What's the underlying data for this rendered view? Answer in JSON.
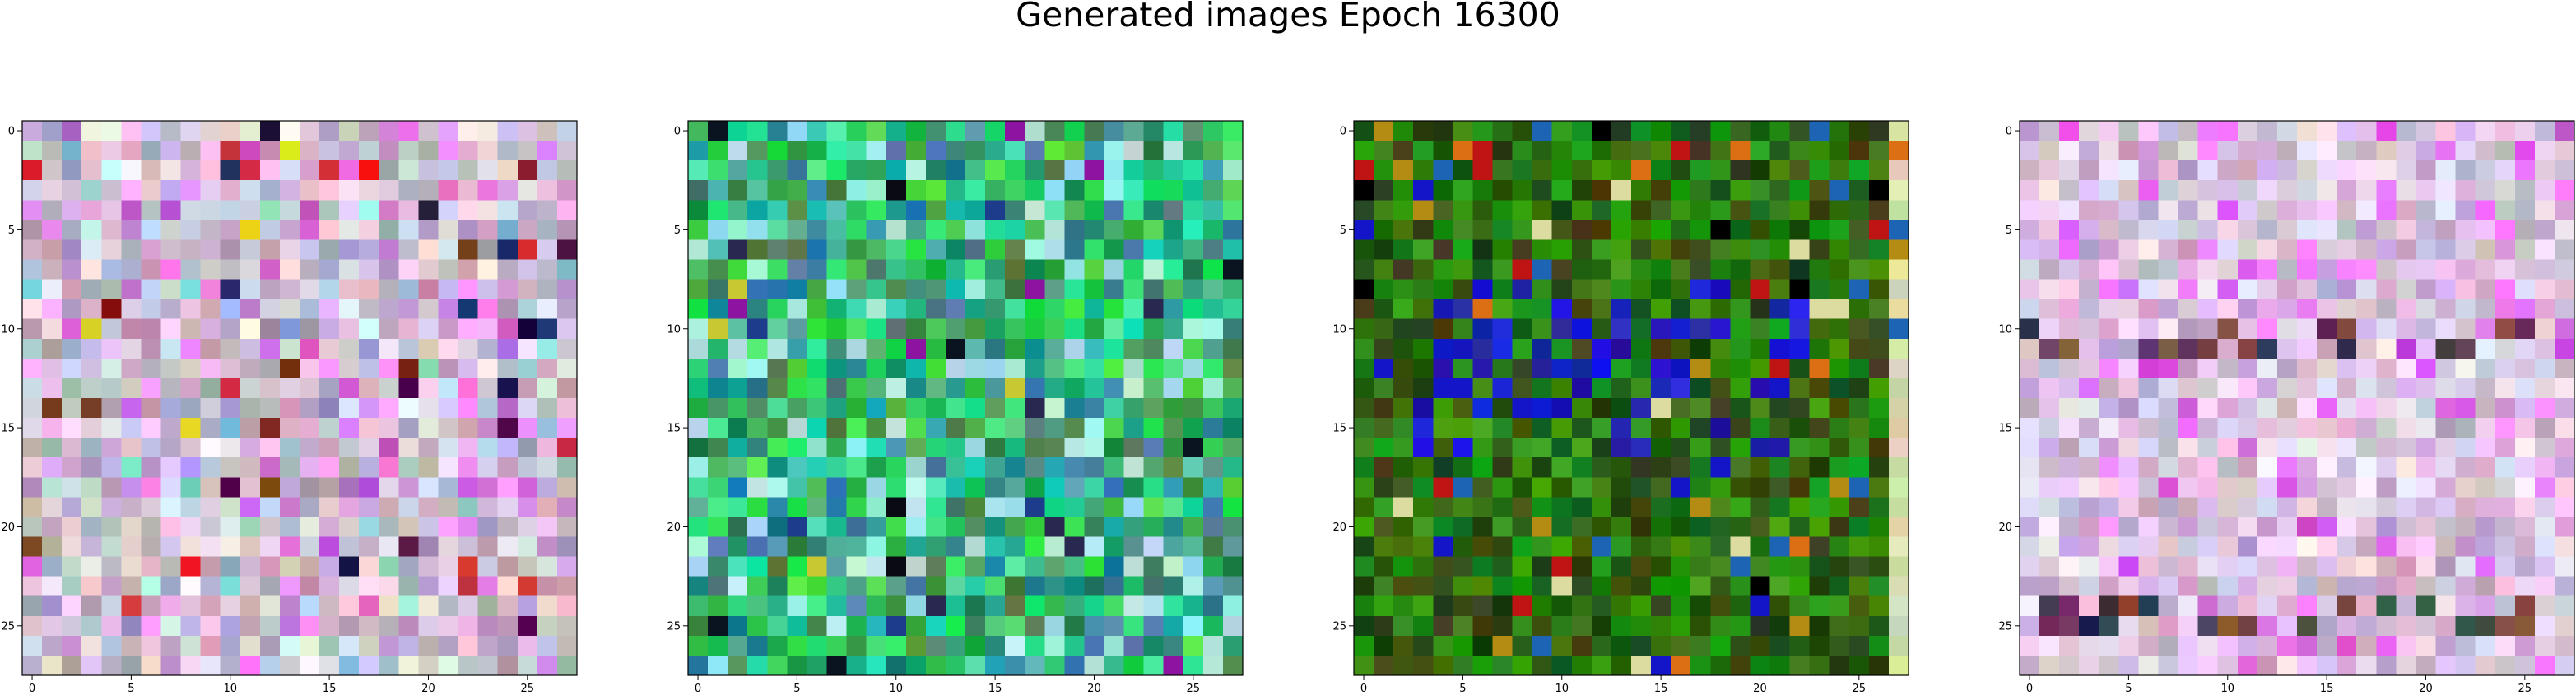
{
  "figure": {
    "title": "Generated images Epoch 16300"
  },
  "chart_data": [
    {
      "type": "heatmap",
      "panel": 1,
      "palette": "pastel",
      "grid": false,
      "xlim": [
        -0.5,
        27.5
      ],
      "ylim": [
        27.5,
        -0.5
      ],
      "x_ticks": [
        0,
        5,
        10,
        15,
        20,
        25
      ],
      "y_ticks": [
        0,
        5,
        10,
        15,
        20,
        25
      ],
      "x_tick_labels": [
        "0",
        "5",
        "10",
        "15",
        "20",
        "25"
      ],
      "y_tick_labels": [
        "0",
        "5",
        "10",
        "15",
        "20",
        "25"
      ],
      "accent_colors": [
        "#5a0a3c",
        "#1e3c64",
        "#c8283c",
        "#e6dc28",
        "#e61414",
        "#14143c",
        "#6e3c1e",
        "#7a1e1e",
        "#dc64c8"
      ]
    },
    {
      "type": "heatmap",
      "panel": 2,
      "palette": "green",
      "grid": false,
      "xlim": [
        -0.5,
        27.5
      ],
      "ylim": [
        27.5,
        -0.5
      ],
      "x_ticks": [
        0,
        5,
        10,
        15,
        20,
        25
      ],
      "y_ticks": [
        0,
        5,
        10,
        15,
        20,
        25
      ],
      "x_tick_labels": [
        "0",
        "5",
        "10",
        "15",
        "20",
        "25"
      ],
      "y_tick_labels": [
        "0",
        "5",
        "10",
        "15",
        "20",
        "25"
      ],
      "accent_colors": [
        "#0a1420",
        "#1e3c8c",
        "#8c14a0",
        "#c8c832",
        "#0a0a14",
        "#282850"
      ]
    },
    {
      "type": "heatmap",
      "panel": 3,
      "palette": "dark-green",
      "grid": false,
      "xlim": [
        -0.5,
        27.5
      ],
      "ylim": [
        27.5,
        -0.5
      ],
      "x_ticks": [
        0,
        5,
        10,
        15,
        20,
        25
      ],
      "y_ticks": [
        0,
        5,
        10,
        15,
        20,
        25
      ],
      "x_tick_labels": [
        "0",
        "5",
        "10",
        "15",
        "20",
        "25"
      ],
      "y_tick_labels": [
        "0",
        "5",
        "10",
        "15",
        "20",
        "25"
      ],
      "accent_colors": [
        "#1414c8",
        "#000000",
        "#be1414",
        "#b48c14",
        "#dc6e14",
        "#1e64b4",
        "#dcdca0"
      ]
    },
    {
      "type": "heatmap",
      "panel": 4,
      "palette": "pastel-pink",
      "grid": false,
      "xlim": [
        -0.5,
        27.5
      ],
      "ylim": [
        27.5,
        -0.5
      ],
      "x_ticks": [
        0,
        5,
        10,
        15,
        20,
        25
      ],
      "y_ticks": [
        0,
        5,
        10,
        15,
        20,
        25
      ],
      "x_tick_labels": [
        "0",
        "5",
        "10",
        "15",
        "20",
        "25"
      ],
      "y_tick_labels": [
        "0",
        "5",
        "10",
        "15",
        "20",
        "25"
      ],
      "accent_colors": [
        "#141428",
        "#1e1e3c",
        "#6e3c28",
        "#501e50",
        "#283c3c"
      ]
    }
  ]
}
